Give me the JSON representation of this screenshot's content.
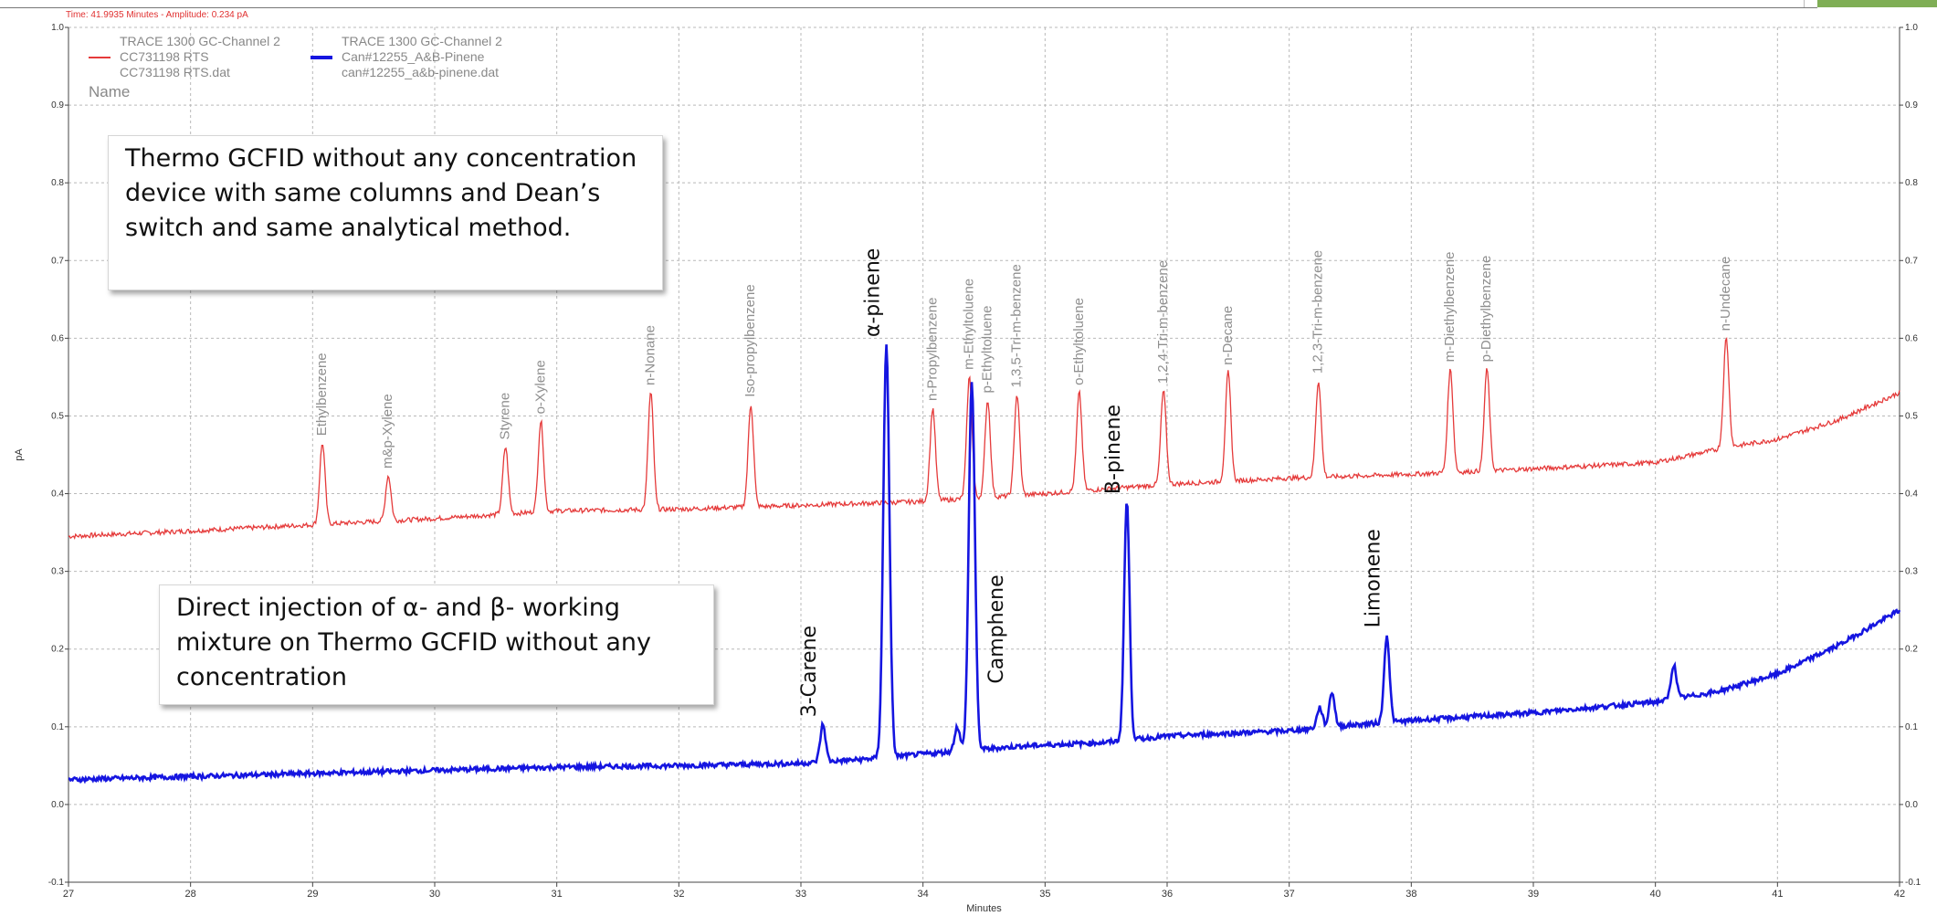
{
  "status_readout": "Time:  41.9935 Minutes - Amplitude:  0.234 pA",
  "legend": {
    "entries": [
      {
        "detector": "TRACE 1300 GC-Channel 2",
        "name": "CC731198 RTS",
        "file": "CC731198 RTS.dat",
        "color": "#e53a3a"
      },
      {
        "detector": "TRACE 1300 GC-Channel 2",
        "name": "Can#12255_A&B-Pinene",
        "file": "can#12255_a&b-pinene.dat",
        "color": "#1515e0"
      }
    ],
    "header": "Name"
  },
  "callouts": {
    "top": "Thermo GCFID without any concentration device with same columns and Dean’s switch and same analytical method.",
    "bottom": "Direct injection of α- and β- working mixture on Thermo GCFID without any concentration"
  },
  "chart_data": {
    "type": "line",
    "xlabel": "Minutes",
    "ylabel": "pA",
    "xlim": [
      27,
      42
    ],
    "ylim": [
      -0.1,
      1.0
    ],
    "x_ticks": [
      "27",
      "28",
      "29",
      "30",
      "31",
      "32",
      "33",
      "34",
      "35",
      "36",
      "37",
      "38",
      "39",
      "40",
      "41",
      "42"
    ],
    "y_ticks": [
      "-0.1",
      "0.0",
      "0.1",
      "0.2",
      "0.3",
      "0.4",
      "0.5",
      "0.6",
      "0.7",
      "0.8",
      "0.9",
      "1.0"
    ],
    "grid": true,
    "series": [
      {
        "name": "CC731198 RTS",
        "color": "#e53a3a",
        "baseline": [
          [
            27,
            0.345
          ],
          [
            28,
            0.352
          ],
          [
            29,
            0.36
          ],
          [
            30,
            0.368
          ],
          [
            31,
            0.378
          ],
          [
            32,
            0.38
          ],
          [
            33,
            0.385
          ],
          [
            34,
            0.39
          ],
          [
            35,
            0.4
          ],
          [
            36,
            0.412
          ],
          [
            37,
            0.42
          ],
          [
            38,
            0.425
          ],
          [
            39,
            0.432
          ],
          [
            40,
            0.44
          ],
          [
            40.6,
            0.46
          ],
          [
            41,
            0.47
          ],
          [
            41.5,
            0.495
          ],
          [
            42,
            0.53
          ]
        ],
        "peaks": [
          {
            "label": "Ethylbenzene",
            "rt": 29.08,
            "apex": 0.465
          },
          {
            "label": "m&p-Xylene",
            "rt": 29.62,
            "apex": 0.423
          },
          {
            "label": "Styrene",
            "rt": 30.58,
            "apex": 0.46
          },
          {
            "label": "o-Xylene",
            "rt": 30.87,
            "apex": 0.493
          },
          {
            "label": "n-Nonane",
            "rt": 31.77,
            "apex": 0.53
          },
          {
            "label": "Iso-propylbenzene",
            "rt": 32.59,
            "apex": 0.515
          },
          {
            "label": "n-Propylbenzene",
            "rt": 34.08,
            "apex": 0.51
          },
          {
            "label": "m-Ethyltoluene",
            "rt": 34.38,
            "apex": 0.55
          },
          {
            "label": "p-Ethyltoluene",
            "rt": 34.53,
            "apex": 0.52
          },
          {
            "label": "1,3,5-Tri-m-benzene",
            "rt": 34.77,
            "apex": 0.527
          },
          {
            "label": "o-Ethyltoluene",
            "rt": 35.28,
            "apex": 0.53
          },
          {
            "label": "1,2,4-Tri-m-benzene",
            "rt": 35.97,
            "apex": 0.532
          },
          {
            "label": "n-Decane",
            "rt": 36.5,
            "apex": 0.556
          },
          {
            "label": "1,2,3-Tri-m-benzene",
            "rt": 37.24,
            "apex": 0.545
          },
          {
            "label": "m-Diethylbenzene",
            "rt": 38.32,
            "apex": 0.56
          },
          {
            "label": "p-Diethylbenzene",
            "rt": 38.62,
            "apex": 0.56
          },
          {
            "label": "n-Undecane",
            "rt": 40.58,
            "apex": 0.6
          }
        ]
      },
      {
        "name": "Can#12255_A&B-Pinene",
        "color": "#1515e0",
        "baseline": [
          [
            27,
            0.032
          ],
          [
            28,
            0.036
          ],
          [
            29,
            0.04
          ],
          [
            30,
            0.044
          ],
          [
            31,
            0.048
          ],
          [
            32,
            0.05
          ],
          [
            33,
            0.053
          ],
          [
            33.5,
            0.058
          ],
          [
            34,
            0.065
          ],
          [
            34.8,
            0.075
          ],
          [
            35.5,
            0.08
          ],
          [
            36,
            0.088
          ],
          [
            37,
            0.095
          ],
          [
            37.5,
            0.102
          ],
          [
            38,
            0.108
          ],
          [
            39,
            0.118
          ],
          [
            40,
            0.132
          ],
          [
            40.5,
            0.145
          ],
          [
            41,
            0.168
          ],
          [
            41.5,
            0.205
          ],
          [
            42,
            0.25
          ]
        ],
        "peaks": [
          {
            "label": "3-Carene",
            "rt": 33.18,
            "apex": 0.103
          },
          {
            "label": "α-pinene",
            "rt": 33.7,
            "apex": 0.592
          },
          {
            "label": "",
            "rt": 34.28,
            "apex": 0.1
          },
          {
            "label": "Camphene",
            "rt": 34.4,
            "apex": 0.545
          },
          {
            "label": "B-pinene",
            "rt": 35.67,
            "apex": 0.39
          },
          {
            "label": "",
            "rt": 37.25,
            "apex": 0.125
          },
          {
            "label": "",
            "rt": 37.35,
            "apex": 0.145
          },
          {
            "label": "Limonene",
            "rt": 37.8,
            "apex": 0.218
          },
          {
            "label": "",
            "rt": 40.15,
            "apex": 0.18
          }
        ]
      }
    ]
  }
}
